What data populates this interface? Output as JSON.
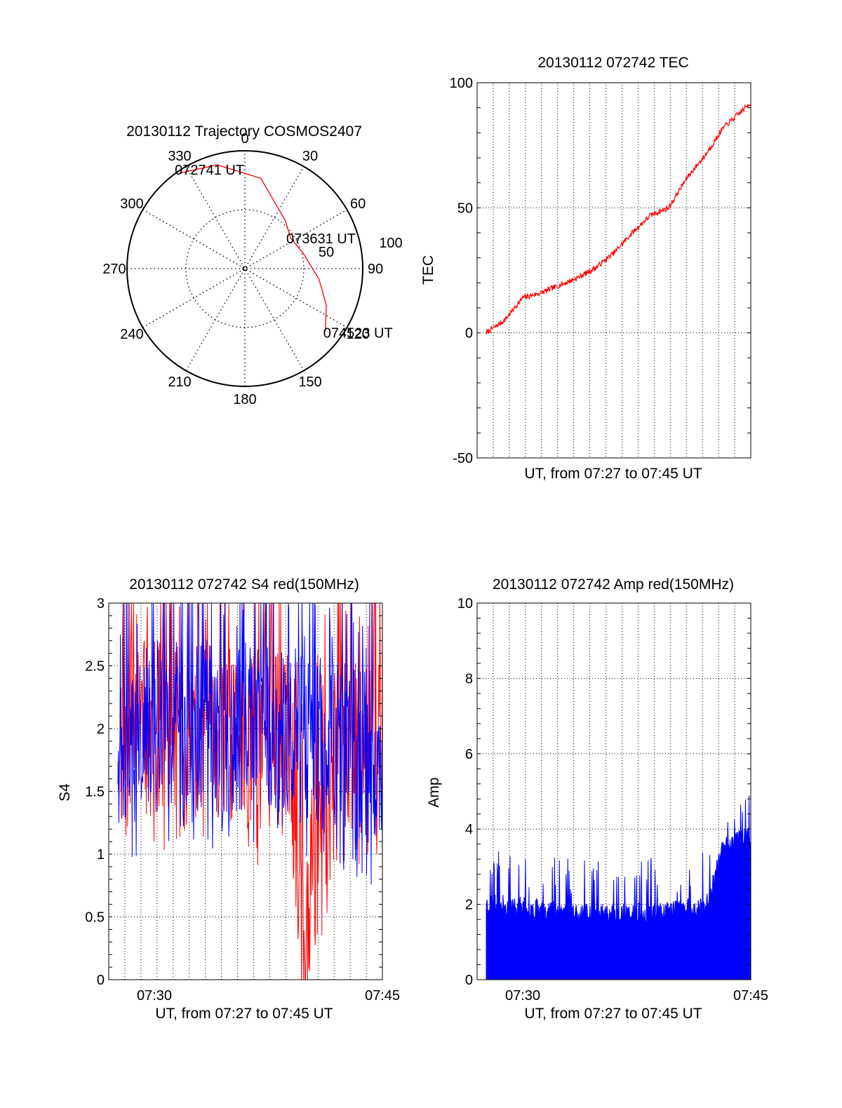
{
  "chart_data": [
    {
      "type": "polar",
      "title": "20130112 Trajectory COSMOS2407",
      "angle_labels": [
        "0",
        "30",
        "60",
        "90",
        "120",
        "150",
        "180",
        "210",
        "240",
        "270",
        "300",
        "330"
      ],
      "radial_labels": [
        "50",
        "100"
      ],
      "trajectory": {
        "color": "#ff0000",
        "points": [
          {
            "az": 326,
            "el": 2,
            "label": "072741 UT"
          },
          {
            "az": 345,
            "el": 8
          },
          {
            "az": 10,
            "el": 20
          },
          {
            "az": 40,
            "el": 42
          },
          {
            "az": 56,
            "el": 48,
            "label": "073631 UT"
          },
          {
            "az": 75,
            "el": 44
          },
          {
            "az": 98,
            "el": 33
          },
          {
            "az": 114,
            "el": 22
          },
          {
            "az": 128,
            "el": 12,
            "label": "074523 UT"
          }
        ]
      }
    },
    {
      "type": "line",
      "title": "20130112 072742 TEC",
      "xlabel": "UT, from 07:27 to 07:45 UT",
      "ylabel": "TEC",
      "ylim": [
        -50,
        100
      ],
      "yticks": [
        "100",
        "50",
        "0",
        "-50"
      ],
      "xlim": [
        7.45,
        7.75
      ],
      "grid": true,
      "series": [
        {
          "color": "#ff0000",
          "x": [
            7.46,
            7.48,
            7.5,
            7.52,
            7.54,
            7.56,
            7.58,
            7.6,
            7.62,
            7.64,
            7.66,
            7.68,
            7.7,
            7.72,
            7.75
          ],
          "values": [
            0,
            5,
            14,
            16,
            19,
            22,
            26,
            32,
            40,
            47,
            50,
            62,
            71,
            82,
            92
          ]
        }
      ]
    },
    {
      "type": "line",
      "title": "20130112 072742 S4 red(150MHz)",
      "xlabel": "UT, from 07:27 to 07:45 UT",
      "ylabel": "S4",
      "ylim": [
        0,
        3
      ],
      "yticks": [
        "3",
        "2.5",
        "2",
        "1.5",
        "1",
        "0.5",
        "0"
      ],
      "xlim": [
        7.45,
        7.75
      ],
      "xticks": [
        {
          "x": 7.5,
          "label": "07:30"
        },
        {
          "x": 7.75,
          "label": "07:45"
        }
      ],
      "grid": true,
      "series": [
        {
          "color": "#ff0000",
          "x": [
            7.46,
            7.5,
            7.55,
            7.6,
            7.65,
            7.66,
            7.7,
            7.75
          ],
          "values": [
            2.1,
            2.0,
            2.0,
            1.9,
            1.9,
            0.35,
            1.9,
            1.8
          ]
        },
        {
          "color": "#0000ff",
          "x": [
            7.46,
            7.5,
            7.55,
            7.6,
            7.65,
            7.7,
            7.75
          ],
          "values": [
            1.9,
            2.0,
            2.05,
            2.0,
            1.95,
            1.9,
            1.7
          ]
        }
      ]
    },
    {
      "type": "bar",
      "title": "20130112 072742 Amp red(150MHz)",
      "xlabel": "UT, from 07:27 to 07:45 UT",
      "ylabel": "Amp",
      "ylim": [
        0,
        10
      ],
      "yticks": [
        "10",
        "8",
        "6",
        "4",
        "2",
        "0"
      ],
      "xlim": [
        7.45,
        7.75
      ],
      "xticks": [
        {
          "x": 7.5,
          "label": "07:30"
        },
        {
          "x": 7.75,
          "label": "07:45"
        }
      ],
      "grid": true,
      "series": [
        {
          "color": "#0000ff",
          "x": [
            7.46,
            7.5,
            7.55,
            7.6,
            7.65,
            7.7,
            7.72,
            7.75
          ],
          "values": [
            2.0,
            1.9,
            1.8,
            1.7,
            1.8,
            1.9,
            3.5,
            3.8
          ]
        }
      ]
    }
  ]
}
